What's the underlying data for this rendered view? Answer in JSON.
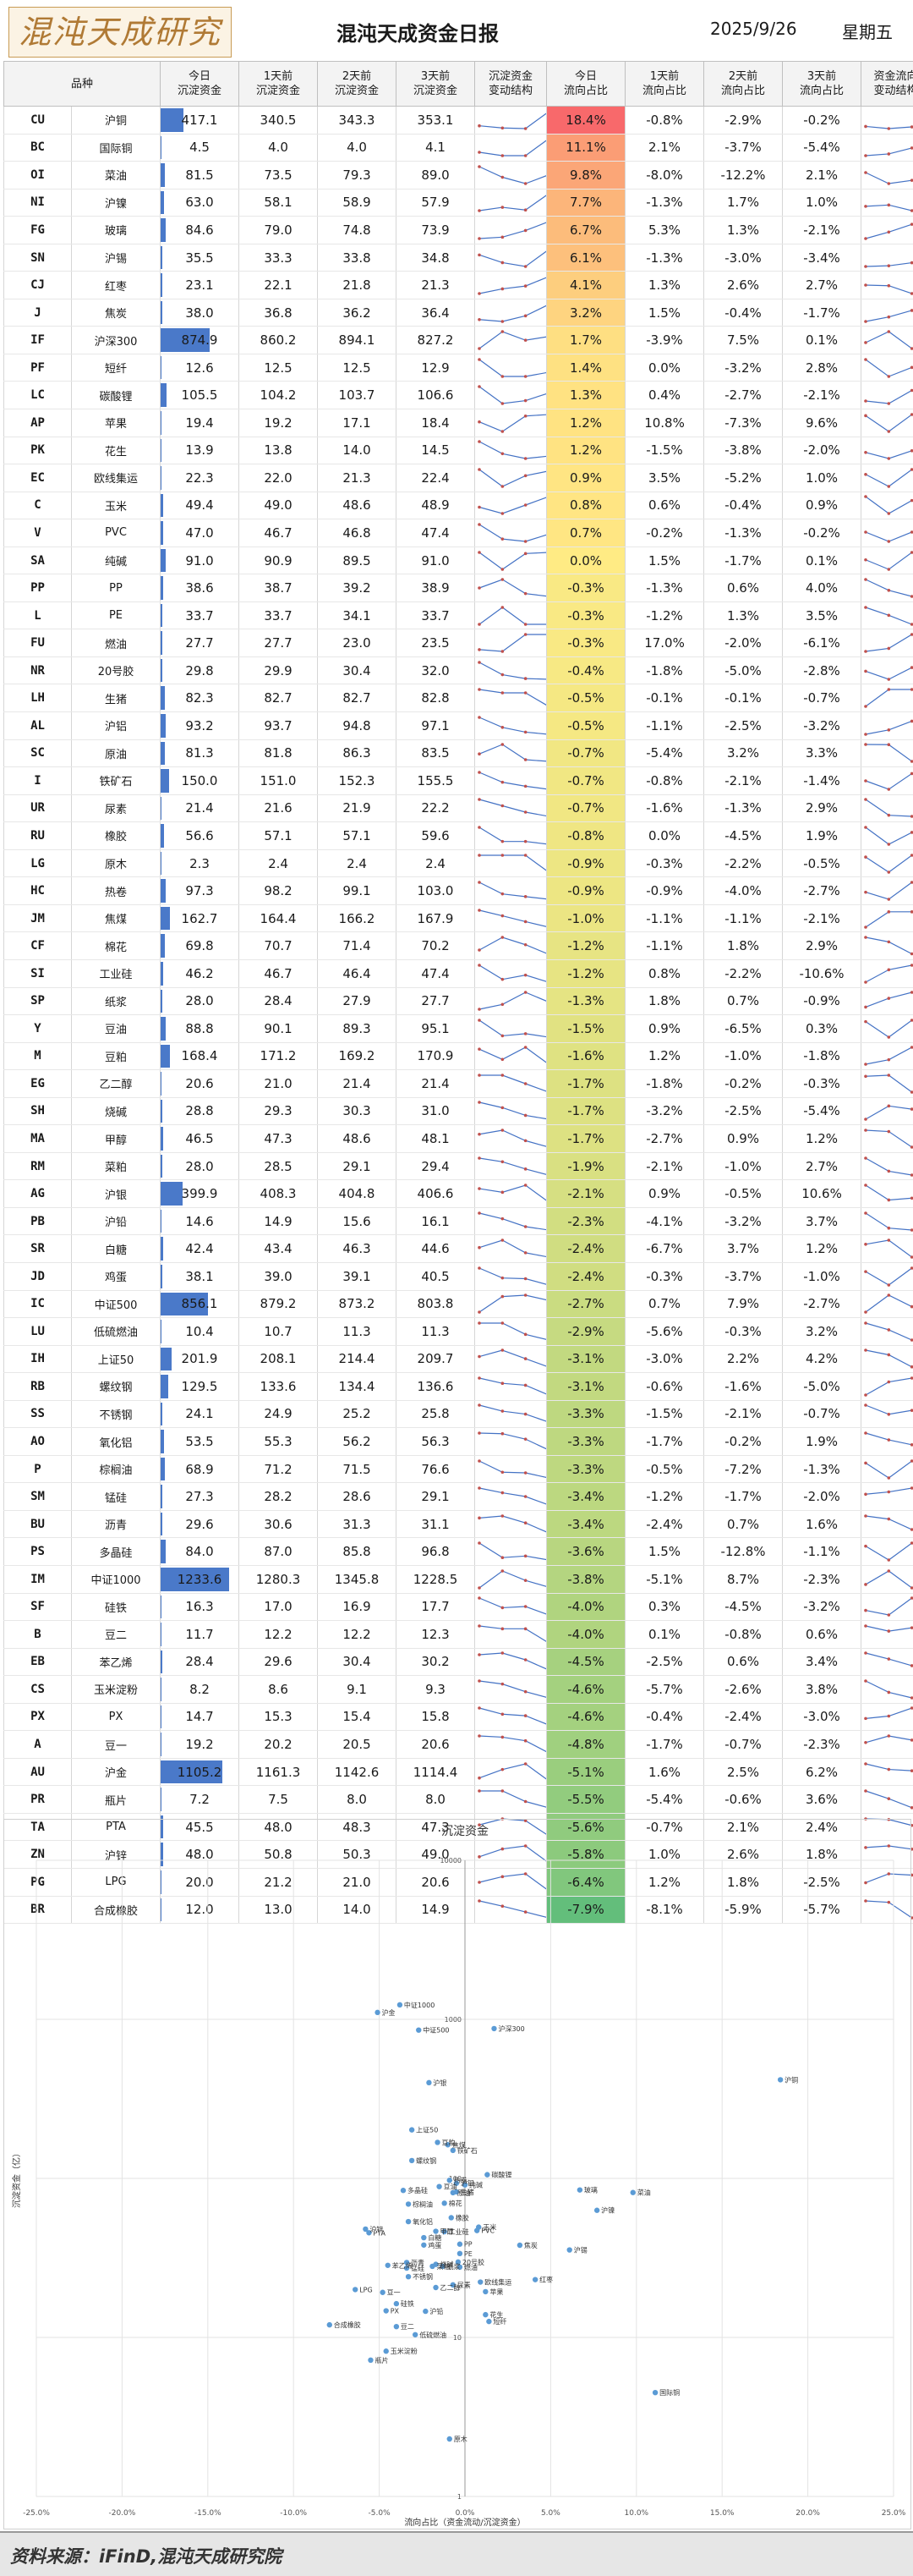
{
  "header": {
    "logo": "混沌天成研究院",
    "title": "混沌天成资金日报",
    "date": "2025/9/26",
    "weekday": "星期五"
  },
  "table": {
    "headers": [
      "品种",
      "今日\n沉淀资金",
      "1天前\n沉淀资金",
      "2天前\n沉淀资金",
      "3天前\n沉淀资金",
      "沉淀资金\n变动结构",
      "今日\n流向占比",
      "1天前\n流向占比",
      "2天前\n流向占比",
      "3天前\n流向占比",
      "资金流向\n变动结构"
    ],
    "rows": [
      {
        "code": "CU",
        "name": "沪铜",
        "d0": "417.1",
        "d1": "340.5",
        "d2": "343.3",
        "d3": "353.1",
        "r0": "18.4%",
        "r1": "-0.8%",
        "r2": "-2.9%",
        "r3": "-0.2%"
      },
      {
        "code": "BC",
        "name": "国际铜",
        "d0": "4.5",
        "d1": "4.0",
        "d2": "4.0",
        "d3": "4.1",
        "r0": "11.1%",
        "r1": "2.1%",
        "r2": "-3.7%",
        "r3": "-5.4%"
      },
      {
        "code": "OI",
        "name": "菜油",
        "d0": "81.5",
        "d1": "73.5",
        "d2": "79.3",
        "d3": "89.0",
        "r0": "9.8%",
        "r1": "-8.0%",
        "r2": "-12.2%",
        "r3": "2.1%"
      },
      {
        "code": "NI",
        "name": "沪镍",
        "d0": "63.0",
        "d1": "58.1",
        "d2": "58.9",
        "d3": "57.9",
        "r0": "7.7%",
        "r1": "-1.3%",
        "r2": "1.7%",
        "r3": "1.0%"
      },
      {
        "code": "FG",
        "name": "玻璃",
        "d0": "84.6",
        "d1": "79.0",
        "d2": "74.8",
        "d3": "73.9",
        "r0": "6.7%",
        "r1": "5.3%",
        "r2": "1.3%",
        "r3": "-2.1%"
      },
      {
        "code": "SN",
        "name": "沪锡",
        "d0": "35.5",
        "d1": "33.3",
        "d2": "33.8",
        "d3": "34.8",
        "r0": "6.1%",
        "r1": "-1.3%",
        "r2": "-3.0%",
        "r3": "-3.4%"
      },
      {
        "code": "CJ",
        "name": "红枣",
        "d0": "23.1",
        "d1": "22.1",
        "d2": "21.8",
        "d3": "21.3",
        "r0": "4.1%",
        "r1": "1.3%",
        "r2": "2.6%",
        "r3": "2.7%"
      },
      {
        "code": "J",
        "name": "焦炭",
        "d0": "38.0",
        "d1": "36.8",
        "d2": "36.2",
        "d3": "36.4",
        "r0": "3.2%",
        "r1": "1.5%",
        "r2": "-0.4%",
        "r3": "-1.7%"
      },
      {
        "code": "IF",
        "name": "沪深300",
        "d0": "874.9",
        "d1": "860.2",
        "d2": "894.1",
        "d3": "827.2",
        "r0": "1.7%",
        "r1": "-3.9%",
        "r2": "7.5%",
        "r3": "0.1%"
      },
      {
        "code": "PF",
        "name": "短纤",
        "d0": "12.6",
        "d1": "12.5",
        "d2": "12.5",
        "d3": "12.9",
        "r0": "1.4%",
        "r1": "0.0%",
        "r2": "-3.2%",
        "r3": "2.8%"
      },
      {
        "code": "LC",
        "name": "碳酸锂",
        "d0": "105.5",
        "d1": "104.2",
        "d2": "103.7",
        "d3": "106.6",
        "r0": "1.3%",
        "r1": "0.4%",
        "r2": "-2.7%",
        "r3": "-2.1%"
      },
      {
        "code": "AP",
        "name": "苹果",
        "d0": "19.4",
        "d1": "19.2",
        "d2": "17.1",
        "d3": "18.4",
        "r0": "1.2%",
        "r1": "10.8%",
        "r2": "-7.3%",
        "r3": "9.6%"
      },
      {
        "code": "PK",
        "name": "花生",
        "d0": "13.9",
        "d1": "13.8",
        "d2": "14.0",
        "d3": "14.5",
        "r0": "1.2%",
        "r1": "-1.5%",
        "r2": "-3.8%",
        "r3": "-2.0%"
      },
      {
        "code": "EC",
        "name": "欧线集运",
        "d0": "22.3",
        "d1": "22.0",
        "d2": "21.3",
        "d3": "22.4",
        "r0": "0.9%",
        "r1": "3.5%",
        "r2": "-5.2%",
        "r3": "1.0%"
      },
      {
        "code": "C",
        "name": "玉米",
        "d0": "49.4",
        "d1": "49.0",
        "d2": "48.6",
        "d3": "48.9",
        "r0": "0.8%",
        "r1": "0.6%",
        "r2": "-0.4%",
        "r3": "0.9%"
      },
      {
        "code": "V",
        "name": "PVC",
        "d0": "47.0",
        "d1": "46.7",
        "d2": "46.8",
        "d3": "47.4",
        "r0": "0.7%",
        "r1": "-0.2%",
        "r2": "-1.3%",
        "r3": "-0.2%"
      },
      {
        "code": "SA",
        "name": "纯碱",
        "d0": "91.0",
        "d1": "90.9",
        "d2": "89.5",
        "d3": "91.0",
        "r0": "0.0%",
        "r1": "1.5%",
        "r2": "-1.7%",
        "r3": "0.1%"
      },
      {
        "code": "PP",
        "name": "PP",
        "d0": "38.6",
        "d1": "38.7",
        "d2": "39.2",
        "d3": "38.9",
        "r0": "-0.3%",
        "r1": "-1.3%",
        "r2": "0.6%",
        "r3": "4.0%"
      },
      {
        "code": "L",
        "name": "PE",
        "d0": "33.7",
        "d1": "33.7",
        "d2": "34.1",
        "d3": "33.7",
        "r0": "-0.3%",
        "r1": "-1.2%",
        "r2": "1.3%",
        "r3": "3.5%"
      },
      {
        "code": "FU",
        "name": "燃油",
        "d0": "27.7",
        "d1": "27.7",
        "d2": "23.0",
        "d3": "23.5",
        "r0": "-0.3%",
        "r1": "17.0%",
        "r2": "-2.0%",
        "r3": "-6.1%"
      },
      {
        "code": "NR",
        "name": "20号胶",
        "d0": "29.8",
        "d1": "29.9",
        "d2": "30.4",
        "d3": "32.0",
        "r0": "-0.4%",
        "r1": "-1.8%",
        "r2": "-5.0%",
        "r3": "-2.8%"
      },
      {
        "code": "LH",
        "name": "生猪",
        "d0": "82.3",
        "d1": "82.7",
        "d2": "82.7",
        "d3": "82.8",
        "r0": "-0.5%",
        "r1": "-0.1%",
        "r2": "-0.1%",
        "r3": "-0.7%"
      },
      {
        "code": "AL",
        "name": "沪铝",
        "d0": "93.2",
        "d1": "93.7",
        "d2": "94.8",
        "d3": "97.1",
        "r0": "-0.5%",
        "r1": "-1.1%",
        "r2": "-2.5%",
        "r3": "-3.2%"
      },
      {
        "code": "SC",
        "name": "原油",
        "d0": "81.3",
        "d1": "81.8",
        "d2": "86.3",
        "d3": "83.5",
        "r0": "-0.7%",
        "r1": "-5.4%",
        "r2": "3.2%",
        "r3": "3.3%"
      },
      {
        "code": "I",
        "name": "铁矿石",
        "d0": "150.0",
        "d1": "151.0",
        "d2": "152.3",
        "d3": "155.5",
        "r0": "-0.7%",
        "r1": "-0.8%",
        "r2": "-2.1%",
        "r3": "-1.4%"
      },
      {
        "code": "UR",
        "name": "尿素",
        "d0": "21.4",
        "d1": "21.6",
        "d2": "21.9",
        "d3": "22.2",
        "r0": "-0.7%",
        "r1": "-1.6%",
        "r2": "-1.3%",
        "r3": "2.9%"
      },
      {
        "code": "RU",
        "name": "橡胶",
        "d0": "56.6",
        "d1": "57.1",
        "d2": "57.1",
        "d3": "59.6",
        "r0": "-0.8%",
        "r1": "0.0%",
        "r2": "-4.5%",
        "r3": "1.9%"
      },
      {
        "code": "LG",
        "name": "原木",
        "d0": "2.3",
        "d1": "2.4",
        "d2": "2.4",
        "d3": "2.4",
        "r0": "-0.9%",
        "r1": "-0.3%",
        "r2": "-2.2%",
        "r3": "-0.5%"
      },
      {
        "code": "HC",
        "name": "热卷",
        "d0": "97.3",
        "d1": "98.2",
        "d2": "99.1",
        "d3": "103.0",
        "r0": "-0.9%",
        "r1": "-0.9%",
        "r2": "-4.0%",
        "r3": "-2.7%"
      },
      {
        "code": "JM",
        "name": "焦煤",
        "d0": "162.7",
        "d1": "164.4",
        "d2": "166.2",
        "d3": "167.9",
        "r0": "-1.0%",
        "r1": "-1.1%",
        "r2": "-1.1%",
        "r3": "-2.1%"
      },
      {
        "code": "CF",
        "name": "棉花",
        "d0": "69.8",
        "d1": "70.7",
        "d2": "71.4",
        "d3": "70.2",
        "r0": "-1.2%",
        "r1": "-1.1%",
        "r2": "1.8%",
        "r3": "2.9%"
      },
      {
        "code": "SI",
        "name": "工业硅",
        "d0": "46.2",
        "d1": "46.7",
        "d2": "46.4",
        "d3": "47.4",
        "r0": "-1.2%",
        "r1": "0.8%",
        "r2": "-2.2%",
        "r3": "-10.6%"
      },
      {
        "code": "SP",
        "name": "纸浆",
        "d0": "28.0",
        "d1": "28.4",
        "d2": "27.9",
        "d3": "27.7",
        "r0": "-1.3%",
        "r1": "1.8%",
        "r2": "0.7%",
        "r3": "-0.9%"
      },
      {
        "code": "Y",
        "name": "豆油",
        "d0": "88.8",
        "d1": "90.1",
        "d2": "89.3",
        "d3": "95.1",
        "r0": "-1.5%",
        "r1": "0.9%",
        "r2": "-6.5%",
        "r3": "0.3%"
      },
      {
        "code": "M",
        "name": "豆粕",
        "d0": "168.4",
        "d1": "171.2",
        "d2": "169.2",
        "d3": "170.9",
        "r0": "-1.6%",
        "r1": "1.2%",
        "r2": "-1.0%",
        "r3": "-1.8%"
      },
      {
        "code": "EG",
        "name": "乙二醇",
        "d0": "20.6",
        "d1": "21.0",
        "d2": "21.4",
        "d3": "21.4",
        "r0": "-1.7%",
        "r1": "-1.8%",
        "r2": "-0.2%",
        "r3": "-0.3%"
      },
      {
        "code": "SH",
        "name": "烧碱",
        "d0": "28.8",
        "d1": "29.3",
        "d2": "30.3",
        "d3": "31.0",
        "r0": "-1.7%",
        "r1": "-3.2%",
        "r2": "-2.5%",
        "r3": "-5.4%"
      },
      {
        "code": "MA",
        "name": "甲醇",
        "d0": "46.5",
        "d1": "47.3",
        "d2": "48.6",
        "d3": "48.1",
        "r0": "-1.7%",
        "r1": "-2.7%",
        "r2": "0.9%",
        "r3": "1.2%"
      },
      {
        "code": "RM",
        "name": "菜粕",
        "d0": "28.0",
        "d1": "28.5",
        "d2": "29.1",
        "d3": "29.4",
        "r0": "-1.9%",
        "r1": "-2.1%",
        "r2": "-1.0%",
        "r3": "2.7%"
      },
      {
        "code": "AG",
        "name": "沪银",
        "d0": "399.9",
        "d1": "408.3",
        "d2": "404.8",
        "d3": "406.6",
        "r0": "-2.1%",
        "r1": "0.9%",
        "r2": "-0.5%",
        "r3": "10.6%"
      },
      {
        "code": "PB",
        "name": "沪铅",
        "d0": "14.6",
        "d1": "14.9",
        "d2": "15.6",
        "d3": "16.1",
        "r0": "-2.3%",
        "r1": "-4.1%",
        "r2": "-3.2%",
        "r3": "3.7%"
      },
      {
        "code": "SR",
        "name": "白糖",
        "d0": "42.4",
        "d1": "43.4",
        "d2": "46.3",
        "d3": "44.6",
        "r0": "-2.4%",
        "r1": "-6.7%",
        "r2": "3.7%",
        "r3": "1.2%"
      },
      {
        "code": "JD",
        "name": "鸡蛋",
        "d0": "38.1",
        "d1": "39.0",
        "d2": "39.1",
        "d3": "40.5",
        "r0": "-2.4%",
        "r1": "-0.3%",
        "r2": "-3.7%",
        "r3": "-1.0%"
      },
      {
        "code": "IC",
        "name": "中证500",
        "d0": "856.1",
        "d1": "879.2",
        "d2": "873.2",
        "d3": "803.8",
        "r0": "-2.7%",
        "r1": "0.7%",
        "r2": "7.9%",
        "r3": "-2.7%"
      },
      {
        "code": "LU",
        "name": "低硫燃油",
        "d0": "10.4",
        "d1": "10.7",
        "d2": "11.3",
        "d3": "11.3",
        "r0": "-2.9%",
        "r1": "-5.6%",
        "r2": "-0.3%",
        "r3": "3.2%"
      },
      {
        "code": "IH",
        "name": "上证50",
        "d0": "201.9",
        "d1": "208.1",
        "d2": "214.4",
        "d3": "209.7",
        "r0": "-3.1%",
        "r1": "-3.0%",
        "r2": "2.2%",
        "r3": "4.2%"
      },
      {
        "code": "RB",
        "name": "螺纹钢",
        "d0": "129.5",
        "d1": "133.6",
        "d2": "134.4",
        "d3": "136.6",
        "r0": "-3.1%",
        "r1": "-0.6%",
        "r2": "-1.6%",
        "r3": "-5.0%"
      },
      {
        "code": "SS",
        "name": "不锈钢",
        "d0": "24.1",
        "d1": "24.9",
        "d2": "25.2",
        "d3": "25.8",
        "r0": "-3.3%",
        "r1": "-1.5%",
        "r2": "-2.1%",
        "r3": "-0.7%"
      },
      {
        "code": "AO",
        "name": "氧化铝",
        "d0": "53.5",
        "d1": "55.3",
        "d2": "56.2",
        "d3": "56.3",
        "r0": "-3.3%",
        "r1": "-1.7%",
        "r2": "-0.2%",
        "r3": "1.9%"
      },
      {
        "code": "P",
        "name": "棕榈油",
        "d0": "68.9",
        "d1": "71.2",
        "d2": "71.5",
        "d3": "76.6",
        "r0": "-3.3%",
        "r1": "-0.5%",
        "r2": "-7.2%",
        "r3": "-1.3%"
      },
      {
        "code": "SM",
        "name": "锰硅",
        "d0": "27.3",
        "d1": "28.2",
        "d2": "28.6",
        "d3": "29.1",
        "r0": "-3.4%",
        "r1": "-1.2%",
        "r2": "-1.7%",
        "r3": "-2.0%"
      },
      {
        "code": "BU",
        "name": "沥青",
        "d0": "29.6",
        "d1": "30.6",
        "d2": "31.3",
        "d3": "31.1",
        "r0": "-3.4%",
        "r1": "-2.4%",
        "r2": "0.7%",
        "r3": "1.6%"
      },
      {
        "code": "PS",
        "name": "多晶硅",
        "d0": "84.0",
        "d1": "87.0",
        "d2": "85.8",
        "d3": "96.8",
        "r0": "-3.6%",
        "r1": "1.5%",
        "r2": "-12.8%",
        "r3": "-1.1%"
      },
      {
        "code": "IM",
        "name": "中证1000",
        "d0": "1233.6",
        "d1": "1280.3",
        "d2": "1345.8",
        "d3": "1228.5",
        "r0": "-3.8%",
        "r1": "-5.1%",
        "r2": "8.7%",
        "r3": "-2.3%"
      },
      {
        "code": "SF",
        "name": "硅铁",
        "d0": "16.3",
        "d1": "17.0",
        "d2": "16.9",
        "d3": "17.7",
        "r0": "-4.0%",
        "r1": "0.3%",
        "r2": "-4.5%",
        "r3": "-3.2%"
      },
      {
        "code": "B",
        "name": "豆二",
        "d0": "11.7",
        "d1": "12.2",
        "d2": "12.2",
        "d3": "12.3",
        "r0": "-4.0%",
        "r1": "0.1%",
        "r2": "-0.8%",
        "r3": "0.6%"
      },
      {
        "code": "EB",
        "name": "苯乙烯",
        "d0": "28.4",
        "d1": "29.6",
        "d2": "30.4",
        "d3": "30.2",
        "r0": "-4.5%",
        "r1": "-2.5%",
        "r2": "0.6%",
        "r3": "3.4%"
      },
      {
        "code": "CS",
        "name": "玉米淀粉",
        "d0": "8.2",
        "d1": "8.6",
        "d2": "9.1",
        "d3": "9.3",
        "r0": "-4.6%",
        "r1": "-5.7%",
        "r2": "-2.6%",
        "r3": "3.8%"
      },
      {
        "code": "PX",
        "name": "PX",
        "d0": "14.7",
        "d1": "15.3",
        "d2": "15.4",
        "d3": "15.8",
        "r0": "-4.6%",
        "r1": "-0.4%",
        "r2": "-2.4%",
        "r3": "-3.0%"
      },
      {
        "code": "A",
        "name": "豆一",
        "d0": "19.2",
        "d1": "20.2",
        "d2": "20.5",
        "d3": "20.6",
        "r0": "-4.8%",
        "r1": "-1.7%",
        "r2": "-0.7%",
        "r3": "-2.3%"
      },
      {
        "code": "AU",
        "name": "沪金",
        "d0": "1105.2",
        "d1": "1161.3",
        "d2": "1142.6",
        "d3": "1114.4",
        "r0": "-5.1%",
        "r1": "1.6%",
        "r2": "2.5%",
        "r3": "6.2%"
      },
      {
        "code": "PR",
        "name": "瓶片",
        "d0": "7.2",
        "d1": "7.5",
        "d2": "8.0",
        "d3": "8.0",
        "r0": "-5.5%",
        "r1": "-5.4%",
        "r2": "-0.6%",
        "r3": "3.6%"
      },
      {
        "code": "TA",
        "name": "PTA",
        "d0": "45.5",
        "d1": "48.0",
        "d2": "48.3",
        "d3": "47.3",
        "r0": "-5.6%",
        "r1": "-0.7%",
        "r2": "2.1%",
        "r3": "2.4%"
      },
      {
        "code": "ZN",
        "name": "沪锌",
        "d0": "48.0",
        "d1": "50.8",
        "d2": "50.3",
        "d3": "49.0",
        "r0": "-5.8%",
        "r1": "1.0%",
        "r2": "2.6%",
        "r3": "1.8%"
      },
      {
        "code": "PG",
        "name": "LPG",
        "d0": "20.0",
        "d1": "21.2",
        "d2": "21.0",
        "d3": "20.6",
        "r0": "-6.4%",
        "r1": "1.2%",
        "r2": "1.8%",
        "r3": "-2.5%"
      },
      {
        "code": "BR",
        "name": "合成橡胶",
        "d0": "12.0",
        "d1": "13.0",
        "d2": "14.0",
        "d3": "14.9",
        "r0": "-7.9%",
        "r1": "-8.1%",
        "r2": "-5.9%",
        "r3": "-5.7%"
      }
    ]
  },
  "chart_data": {
    "type": "scatter",
    "title": "沉淀资金",
    "xlabel": "流向占比（资金流动/沉淀资金）",
    "ylabel": "沉淀资金（亿）",
    "x_ticks": [
      "-25.0%",
      "-20.0%",
      "-15.0%",
      "-10.0%",
      "-5.0%",
      "0.0%",
      "5.0%",
      "10.0%",
      "15.0%",
      "20.0%",
      "25.0%"
    ],
    "y_ticks": [
      "1",
      "10",
      "100",
      "1000",
      "10000"
    ],
    "xlim": [
      -25,
      25
    ],
    "ylim": [
      1,
      10000
    ],
    "y_scale": "log",
    "grid": true,
    "point_color": "#5b9bd5",
    "note": "points: x = 今日流向占比 (%), y = 今日沉淀资金 (亿), label = 品种; taken from table rows"
  },
  "footer": {
    "source": "资料来源：iFinD,混沌天成研究院"
  },
  "colors": {
    "bar": "#4a79c9",
    "spark": "#4472c4",
    "spark_marker": "#c0504d",
    "ratio_high": "#f8696b",
    "ratio_mid": "#ffeb84",
    "ratio_low": "#63be7b"
  }
}
